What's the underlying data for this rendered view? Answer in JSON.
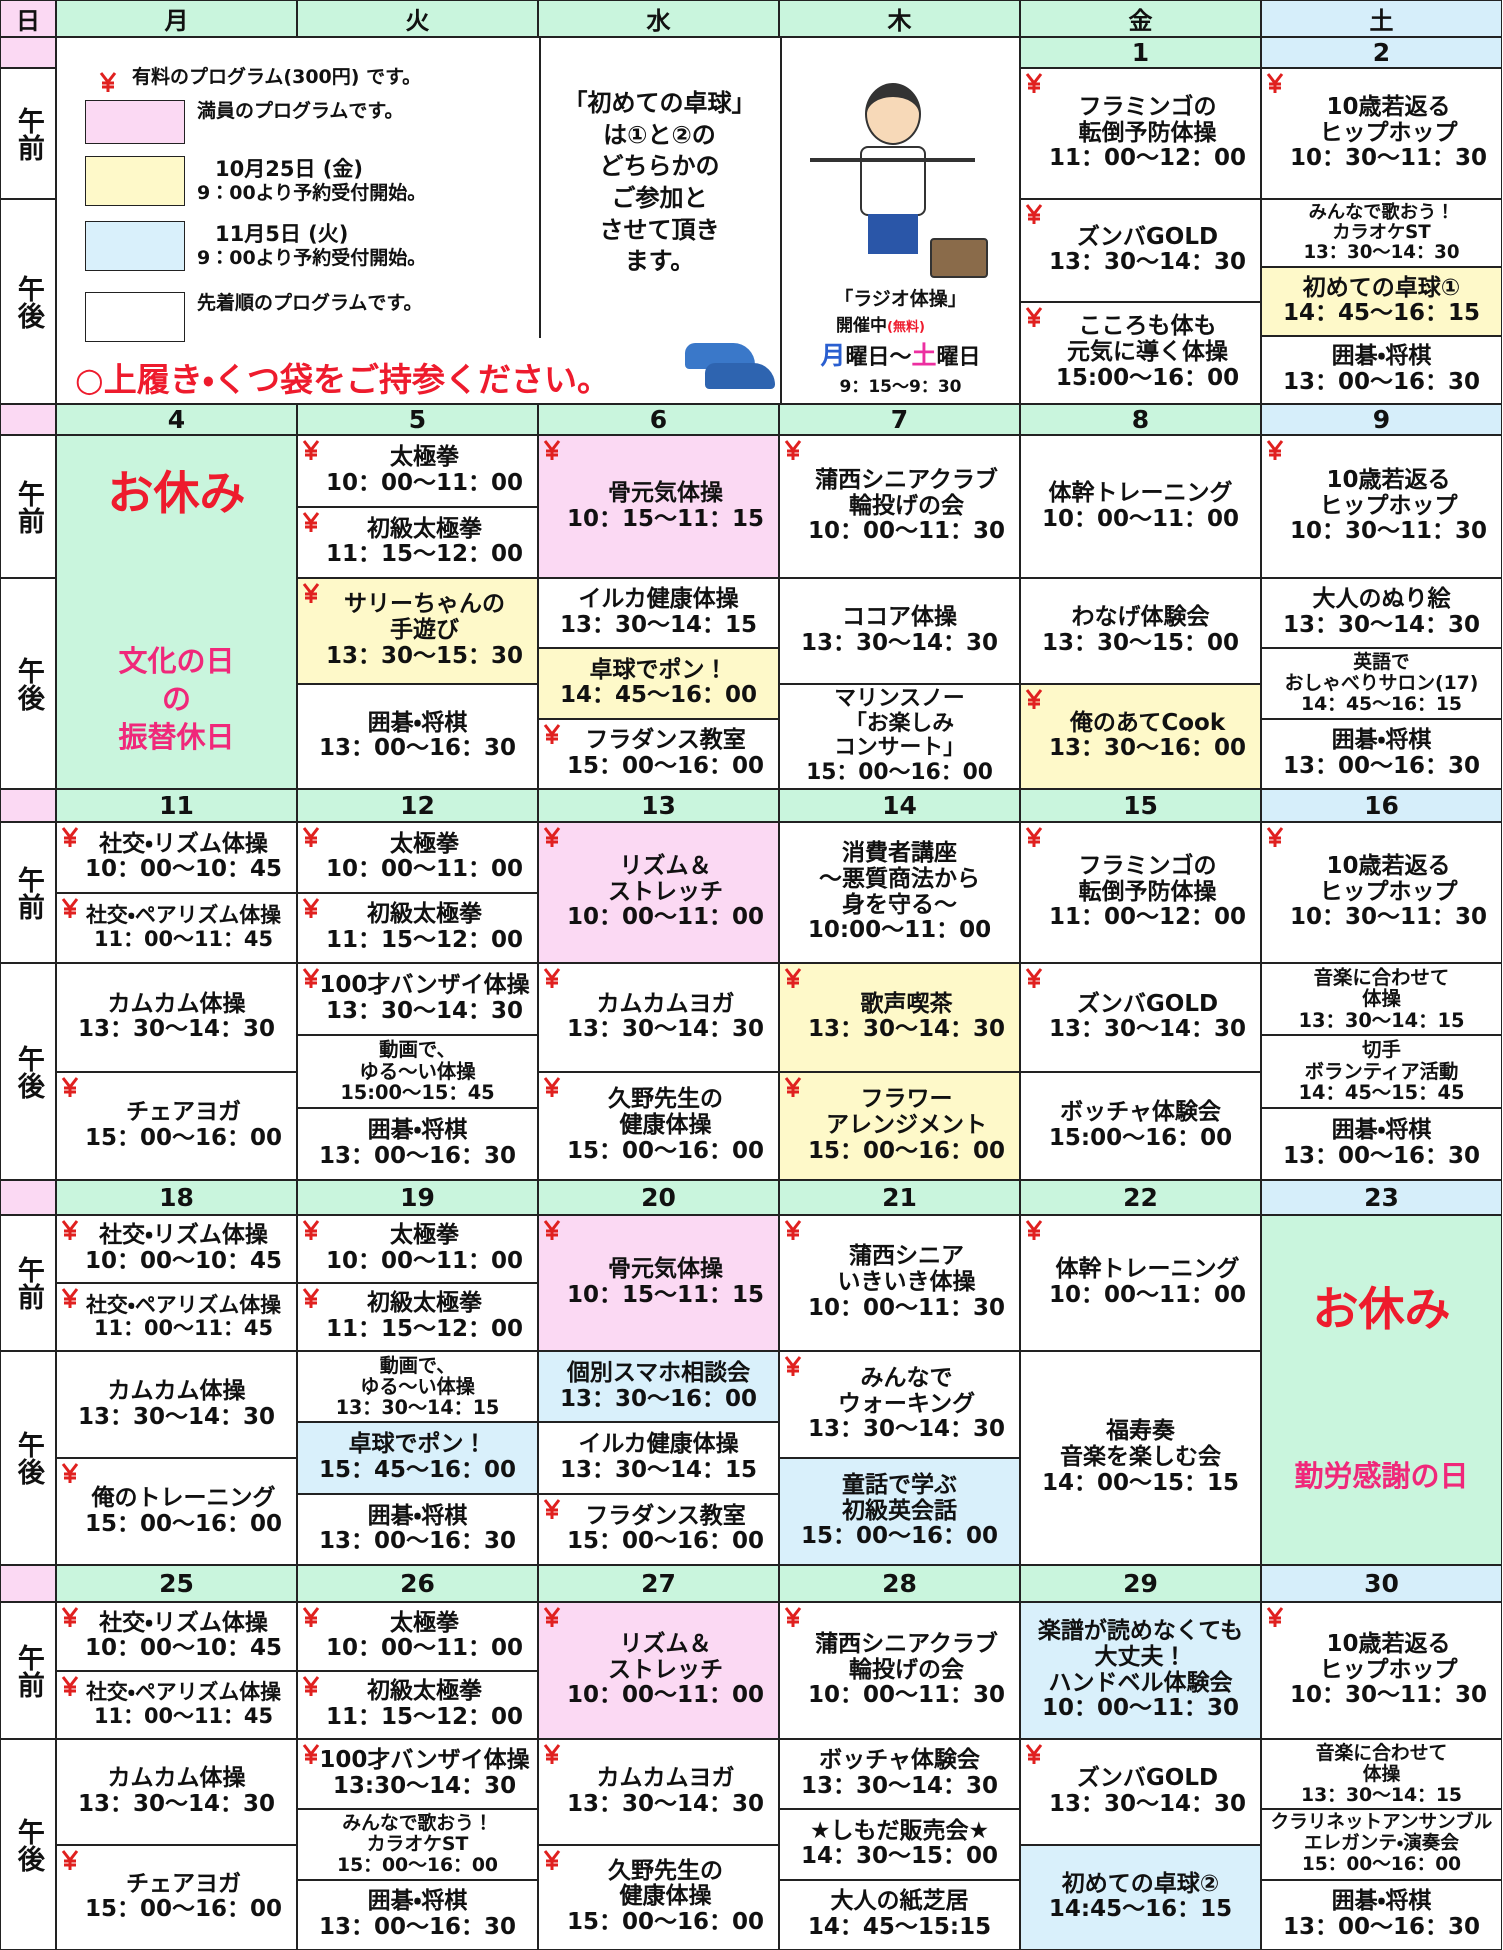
{
  "header": {
    "days": [
      "日",
      "月",
      "火",
      "水",
      "木",
      "金",
      "土"
    ],
    "day_colors": [
      "#fbd9f3",
      "#c9f5dd",
      "#c9f5dd",
      "#c9f5dd",
      "#c9f5dd",
      "#c9f5dd",
      "#d6eefa"
    ]
  },
  "periods": [
    "午前",
    "午後"
  ],
  "legend": {
    "items": [
      {
        "paid": true,
        "lines": [
          "有料のプログラム(300円) です。"
        ]
      },
      {
        "color": "#fbd9f3",
        "lines": [
          "満員のプログラムです。"
        ]
      },
      {
        "color": "#fef9c9",
        "lines": [
          "10月25日 (金)",
          "9：00より予約受付開始。"
        ]
      },
      {
        "color": "#d9f0fb",
        "lines": [
          "11月5日 (火)",
          "9：00より予約受付開始。"
        ]
      },
      {
        "color": "#ffffff",
        "lines": [
          "先着順のプログラムです。"
        ]
      }
    ],
    "notice": "○上履き・くつ袋をご持参ください。",
    "note": [
      "「初めての卓球」",
      "は①と②の",
      "どちらかの",
      "ご参加と",
      "させて頂き",
      "ます。"
    ],
    "radio": {
      "title": "「ラジオ体操」",
      "status": "開催中",
      "free": "(無料)",
      "from": "月",
      "from_suffix": "曜日～",
      "to": "土",
      "to_suffix": "曜日",
      "time": "9：15～9：30"
    }
  },
  "weeks": [
    {
      "days": [
        {
          "date": 1,
          "am": [
            {
              "paid": true,
              "lines": [
                "フラミンゴの",
                "転倒予防体操",
                "11：00～12：00"
              ]
            }
          ],
          "pm": [
            {
              "paid": true,
              "lines": [
                "ズンバGOLD",
                "13：30～14：30"
              ]
            },
            {
              "paid": true,
              "lines": [
                "こころも体も",
                "元気に導く体操",
                "15:00～16：00"
              ]
            }
          ]
        },
        {
          "date": 2,
          "am": [
            {
              "paid": true,
              "lines": [
                "10歳若返る",
                "ヒップホップ",
                "10：30～11：30"
              ]
            }
          ],
          "pm": [
            {
              "lines": [
                "みんなで歌おう！",
                "カラオケST",
                "13：30～14：30"
              ]
            },
            {
              "color": "#fef9c9",
              "lines": [
                "初めての卓球①",
                "14：45～16：15"
              ]
            },
            {
              "lines": [
                "囲碁・将棋",
                "13：00～16：30"
              ]
            }
          ]
        }
      ]
    },
    {
      "days": [
        {
          "date": 4,
          "all_day": {
            "title": "お休み",
            "caption": [
              "文化の日",
              "の",
              "振替休日"
            ]
          }
        },
        {
          "date": 5,
          "am": [
            {
              "paid": true,
              "lines": [
                "太極拳",
                "10：00～11：00"
              ]
            },
            {
              "paid": true,
              "lines": [
                "初級太極拳",
                "11：15～12：00"
              ]
            }
          ],
          "pm": [
            {
              "paid": true,
              "color": "#fef9c9",
              "lines": [
                "サリーちゃんの",
                "手遊び",
                "13：30～15：30"
              ]
            },
            {
              "lines": [
                "囲碁・将棋",
                "13：00～16：30"
              ]
            }
          ]
        },
        {
          "date": 6,
          "am": [
            {
              "paid": true,
              "color": "#fbd9f3",
              "lines": [
                "骨元気体操",
                "10：15～11：15"
              ]
            }
          ],
          "pm": [
            {
              "lines": [
                "イルカ健康体操",
                "13：30～14：15"
              ]
            },
            {
              "color": "#fef9c9",
              "lines": [
                "卓球でポン！",
                "14：45～16：00"
              ]
            },
            {
              "paid": true,
              "lines": [
                "フラダンス教室",
                "15：00～16：00"
              ]
            }
          ]
        },
        {
          "date": 7,
          "am": [
            {
              "paid": true,
              "lines": [
                "蒲西シニアクラブ",
                "輪投げの会",
                "10：00～11：30"
              ]
            }
          ],
          "pm": [
            {
              "lines": [
                "ココア体操",
                "13：30～14：30"
              ]
            },
            {
              "lines": [
                "マリンスノー",
                "「お楽しみ",
                "コンサート」",
                "15：00～16：00"
              ]
            }
          ]
        },
        {
          "date": 8,
          "am": [
            {
              "lines": [
                "体幹トレーニング",
                "10：00～11：00"
              ]
            }
          ],
          "pm": [
            {
              "lines": [
                "わなげ体験会",
                "13：30～15：00"
              ]
            },
            {
              "paid": true,
              "color": "#fef9c9",
              "lines": [
                "俺のあてCook",
                "13：30～16：00"
              ]
            }
          ]
        },
        {
          "date": 9,
          "am": [
            {
              "paid": true,
              "lines": [
                "10歳若返る",
                "ヒップホップ",
                "10：30～11：30"
              ]
            }
          ],
          "pm": [
            {
              "lines": [
                "大人のぬり絵",
                "13：30～14：30"
              ]
            },
            {
              "lines": [
                "英語で",
                "おしゃべりサロン(17)",
                "14：45～16：15"
              ]
            },
            {
              "lines": [
                "囲碁・将棋",
                "13：00～16：30"
              ]
            }
          ]
        }
      ]
    },
    {
      "days": [
        {
          "date": 11,
          "am": [
            {
              "paid": true,
              "lines": [
                "社交・リズム体操",
                "10：00～10：45"
              ]
            },
            {
              "paid": true,
              "lines": [
                "社交・ペアリズム体操",
                "11：00～11：45"
              ]
            }
          ],
          "pm": [
            {
              "lines": [
                "カムカム体操",
                "13：30～14：30"
              ]
            },
            {
              "paid": true,
              "lines": [
                "チェアヨガ",
                "15：00～16：00"
              ]
            }
          ]
        },
        {
          "date": 12,
          "am": [
            {
              "paid": true,
              "lines": [
                "太極拳",
                "10：00～11：00"
              ]
            },
            {
              "paid": true,
              "lines": [
                "初級太極拳",
                "11：15～12：00"
              ]
            }
          ],
          "pm": [
            {
              "paid": true,
              "lines": [
                "100才バンザイ体操",
                "13：30～14：30"
              ]
            },
            {
              "lines": [
                "動画で、",
                "ゆる～い体操",
                "15:00～15：45"
              ]
            },
            {
              "lines": [
                "囲碁・将棋",
                "13：00～16：30"
              ]
            }
          ]
        },
        {
          "date": 13,
          "am": [
            {
              "paid": true,
              "color": "#fbd9f3",
              "lines": [
                "リズム＆",
                "ストレッチ",
                "10：00～11：00"
              ]
            }
          ],
          "pm": [
            {
              "paid": true,
              "lines": [
                "カムカムヨガ",
                "13：30～14：30"
              ]
            },
            {
              "paid": true,
              "lines": [
                "久野先生の",
                "健康体操",
                "15：00～16：00"
              ]
            }
          ]
        },
        {
          "date": 14,
          "am": [
            {
              "lines": [
                "消費者講座",
                "～悪質商法から",
                "身を守る～",
                "10:00～11：00"
              ]
            }
          ],
          "pm": [
            {
              "paid": true,
              "color": "#fef9c9",
              "lines": [
                "歌声喫茶",
                "13：30～14：30"
              ]
            },
            {
              "paid": true,
              "color": "#fef9c9",
              "lines": [
                "フラワー",
                "アレンジメント",
                "15：00～16：00"
              ]
            }
          ]
        },
        {
          "date": 15,
          "am": [
            {
              "paid": true,
              "lines": [
                "フラミンゴの",
                "転倒予防体操",
                "11：00～12：00"
              ]
            }
          ],
          "pm": [
            {
              "paid": true,
              "lines": [
                "ズンバGOLD",
                "13：30～14：30"
              ]
            },
            {
              "lines": [
                "ボッチャ体験会",
                "15:00～16：00"
              ]
            }
          ]
        },
        {
          "date": 16,
          "am": [
            {
              "paid": true,
              "lines": [
                "10歳若返る",
                "ヒップホップ",
                "10：30～11：30"
              ]
            }
          ],
          "pm": [
            {
              "lines": [
                "音楽に合わせて",
                "体操",
                "13：30～14：15"
              ]
            },
            {
              "lines": [
                "切手",
                "ボランティア活動",
                "14：45～15：45"
              ]
            },
            {
              "lines": [
                "囲碁・将棋",
                "13：00～16：30"
              ]
            }
          ]
        }
      ]
    },
    {
      "days": [
        {
          "date": 18,
          "am": [
            {
              "paid": true,
              "lines": [
                "社交・リズム体操",
                "10：00～10：45"
              ]
            },
            {
              "paid": true,
              "lines": [
                "社交・ペアリズム体操",
                "11：00～11：45"
              ]
            }
          ],
          "pm": [
            {
              "lines": [
                "カムカム体操",
                "13：30～14：30"
              ]
            },
            {
              "paid": true,
              "lines": [
                "俺のトレーニング",
                "15：00～16：00"
              ]
            }
          ]
        },
        {
          "date": 19,
          "am": [
            {
              "paid": true,
              "lines": [
                "太極拳",
                "10：00～11：00"
              ]
            },
            {
              "paid": true,
              "lines": [
                "初級太極拳",
                "11：15～12：00"
              ]
            }
          ],
          "pm": [
            {
              "lines": [
                "動画で、",
                "ゆる～い体操",
                "13：30～14：15"
              ]
            },
            {
              "color": "#d9f0fb",
              "lines": [
                "卓球でポン！",
                "15：45～16：00"
              ]
            },
            {
              "lines": [
                "囲碁・将棋",
                "13：00～16：30"
              ]
            }
          ]
        },
        {
          "date": 20,
          "am": [
            {
              "paid": true,
              "color": "#fbd9f3",
              "lines": [
                "骨元気体操",
                "10：15～11：15"
              ]
            }
          ],
          "pm": [
            {
              "color": "#d9f0fb",
              "lines": [
                "個別スマホ相談会",
                "13：30～16：00"
              ]
            },
            {
              "lines": [
                "イルカ健康体操",
                "13：30～14：15"
              ]
            },
            {
              "paid": true,
              "lines": [
                "フラダンス教室",
                "15：00～16：00"
              ]
            }
          ]
        },
        {
          "date": 21,
          "am": [
            {
              "paid": true,
              "lines": [
                "蒲西シニア",
                "いきいき体操",
                "10：00～11：30"
              ]
            }
          ],
          "pm": [
            {
              "paid": true,
              "lines": [
                "みんなで",
                "ウォーキング",
                "13：30～14：30"
              ]
            },
            {
              "color": "#d9f0fb",
              "lines": [
                "童話で学ぶ",
                "初級英会話",
                "15：00～16：00"
              ]
            }
          ]
        },
        {
          "date": 22,
          "am": [
            {
              "paid": true,
              "lines": [
                "体幹トレーニング",
                "10：00～11：00"
              ]
            }
          ],
          "pm": [
            {
              "lines": [
                "福寿奏",
                "音楽を楽しむ会",
                "14：00～15：15"
              ]
            }
          ]
        },
        {
          "date": 23,
          "all_day": {
            "title": "お休み",
            "caption": [
              "勤労感謝の日"
            ]
          }
        }
      ]
    },
    {
      "days": [
        {
          "date": 25,
          "am": [
            {
              "paid": true,
              "lines": [
                "社交・リズム体操",
                "10：00～10：45"
              ]
            },
            {
              "paid": true,
              "lines": [
                "社交・ペアリズム体操",
                "11：00～11：45"
              ]
            }
          ],
          "pm": [
            {
              "lines": [
                "カムカム体操",
                "13：30～14：30"
              ]
            },
            {
              "paid": true,
              "lines": [
                "チェアヨガ",
                "15：00～16：00"
              ]
            }
          ]
        },
        {
          "date": 26,
          "am": [
            {
              "paid": true,
              "lines": [
                "太極拳",
                "10：00～11：00"
              ]
            },
            {
              "paid": true,
              "lines": [
                "初級太極拳",
                "11：15～12：00"
              ]
            }
          ],
          "pm": [
            {
              "paid": true,
              "lines": [
                "100才バンザイ体操",
                "13:30～14：30"
              ]
            },
            {
              "lines": [
                "みんなで歌おう！",
                "カラオケST",
                "15：00～16：00"
              ]
            },
            {
              "lines": [
                "囲碁・将棋",
                "13：00～16：30"
              ]
            }
          ]
        },
        {
          "date": 27,
          "am": [
            {
              "paid": true,
              "color": "#fbd9f3",
              "lines": [
                "リズム＆",
                "ストレッチ",
                "10：00～11：00"
              ]
            }
          ],
          "pm": [
            {
              "paid": true,
              "lines": [
                "カムカムヨガ",
                "13：30～14：30"
              ]
            },
            {
              "paid": true,
              "lines": [
                "久野先生の",
                "健康体操",
                "15：00～16：00"
              ]
            }
          ]
        },
        {
          "date": 28,
          "am": [
            {
              "paid": true,
              "lines": [
                "蒲西シニアクラブ",
                "輪投げの会",
                "10：00～11：30"
              ]
            }
          ],
          "pm": [
            {
              "lines": [
                "ボッチャ体験会",
                "13：30～14：30"
              ]
            },
            {
              "lines": [
                "★しもだ販売会★",
                "14：30～15：00"
              ]
            },
            {
              "lines": [
                "大人の紙芝居",
                "14：45～15:15"
              ]
            }
          ]
        },
        {
          "date": 29,
          "am": [
            {
              "color": "#d9f0fb",
              "lines": [
                "楽譜が読めなくても",
                "大丈夫！",
                "ハンドベル体験会",
                "10：00～11：30"
              ]
            }
          ],
          "pm": [
            {
              "paid": true,
              "lines": [
                "ズンバGOLD",
                "13：30～14：30"
              ]
            },
            {
              "color": "#d9f0fb",
              "lines": [
                "初めての卓球②",
                "14:45～16：15"
              ]
            }
          ]
        },
        {
          "date": 30,
          "am": [
            {
              "paid": true,
              "lines": [
                "10歳若返る",
                "ヒップホップ",
                "10：30～11：30"
              ]
            }
          ],
          "pm": [
            {
              "lines": [
                "音楽に合わせて",
                "体操",
                "13：30～14：15"
              ]
            },
            {
              "lines": [
                "クラリネットアンサンブル",
                "エレガンテ・演奏会",
                "15：00～16：00"
              ]
            },
            {
              "lines": [
                "囲碁・将棋",
                "13：00～16：30"
              ]
            }
          ]
        }
      ]
    }
  ]
}
